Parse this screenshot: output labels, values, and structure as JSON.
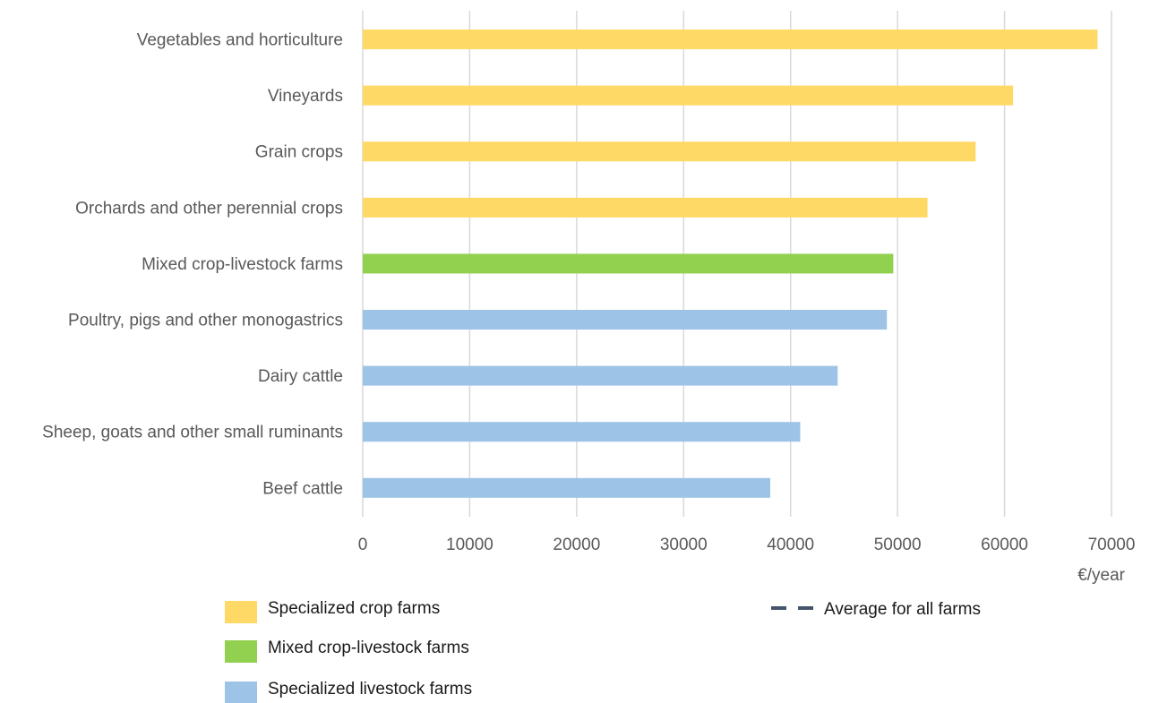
{
  "chart_data": {
    "type": "bar",
    "orientation": "horizontal",
    "categories": [
      "Vegetables and horticulture",
      "Vineyards",
      "Grain crops",
      "Orchards and other perennial crops",
      "Mixed crop-livestock farms",
      "Poultry, pigs and other monogastrics",
      "Dairy cattle",
      "Sheep, goats and other small ruminants",
      "Beef cattle"
    ],
    "values": [
      68700,
      60800,
      57300,
      52800,
      49600,
      49000,
      44400,
      40900,
      38100
    ],
    "groups": [
      "crop",
      "crop",
      "crop",
      "crop",
      "mixed",
      "livestock",
      "livestock",
      "livestock",
      "livestock"
    ],
    "xlim": [
      0,
      70000
    ],
    "xticks": [
      0,
      10000,
      20000,
      30000,
      40000,
      50000,
      60000,
      70000
    ],
    "xunit": "€/year",
    "grid": "vertical",
    "colors": {
      "crop": "#FFD966",
      "mixed": "#92D050",
      "livestock": "#9DC3E6",
      "average": "#44546A"
    },
    "legend": {
      "placement": "bottom",
      "items": [
        {
          "key": "crop",
          "label": "Specialized crop farms"
        },
        {
          "key": "mixed",
          "label": "Mixed crop-livestock farms"
        },
        {
          "key": "livestock",
          "label": "Specialized livestock farms"
        },
        {
          "key": "average",
          "label": "Average for all farms",
          "style": "dashed-line"
        }
      ]
    }
  }
}
